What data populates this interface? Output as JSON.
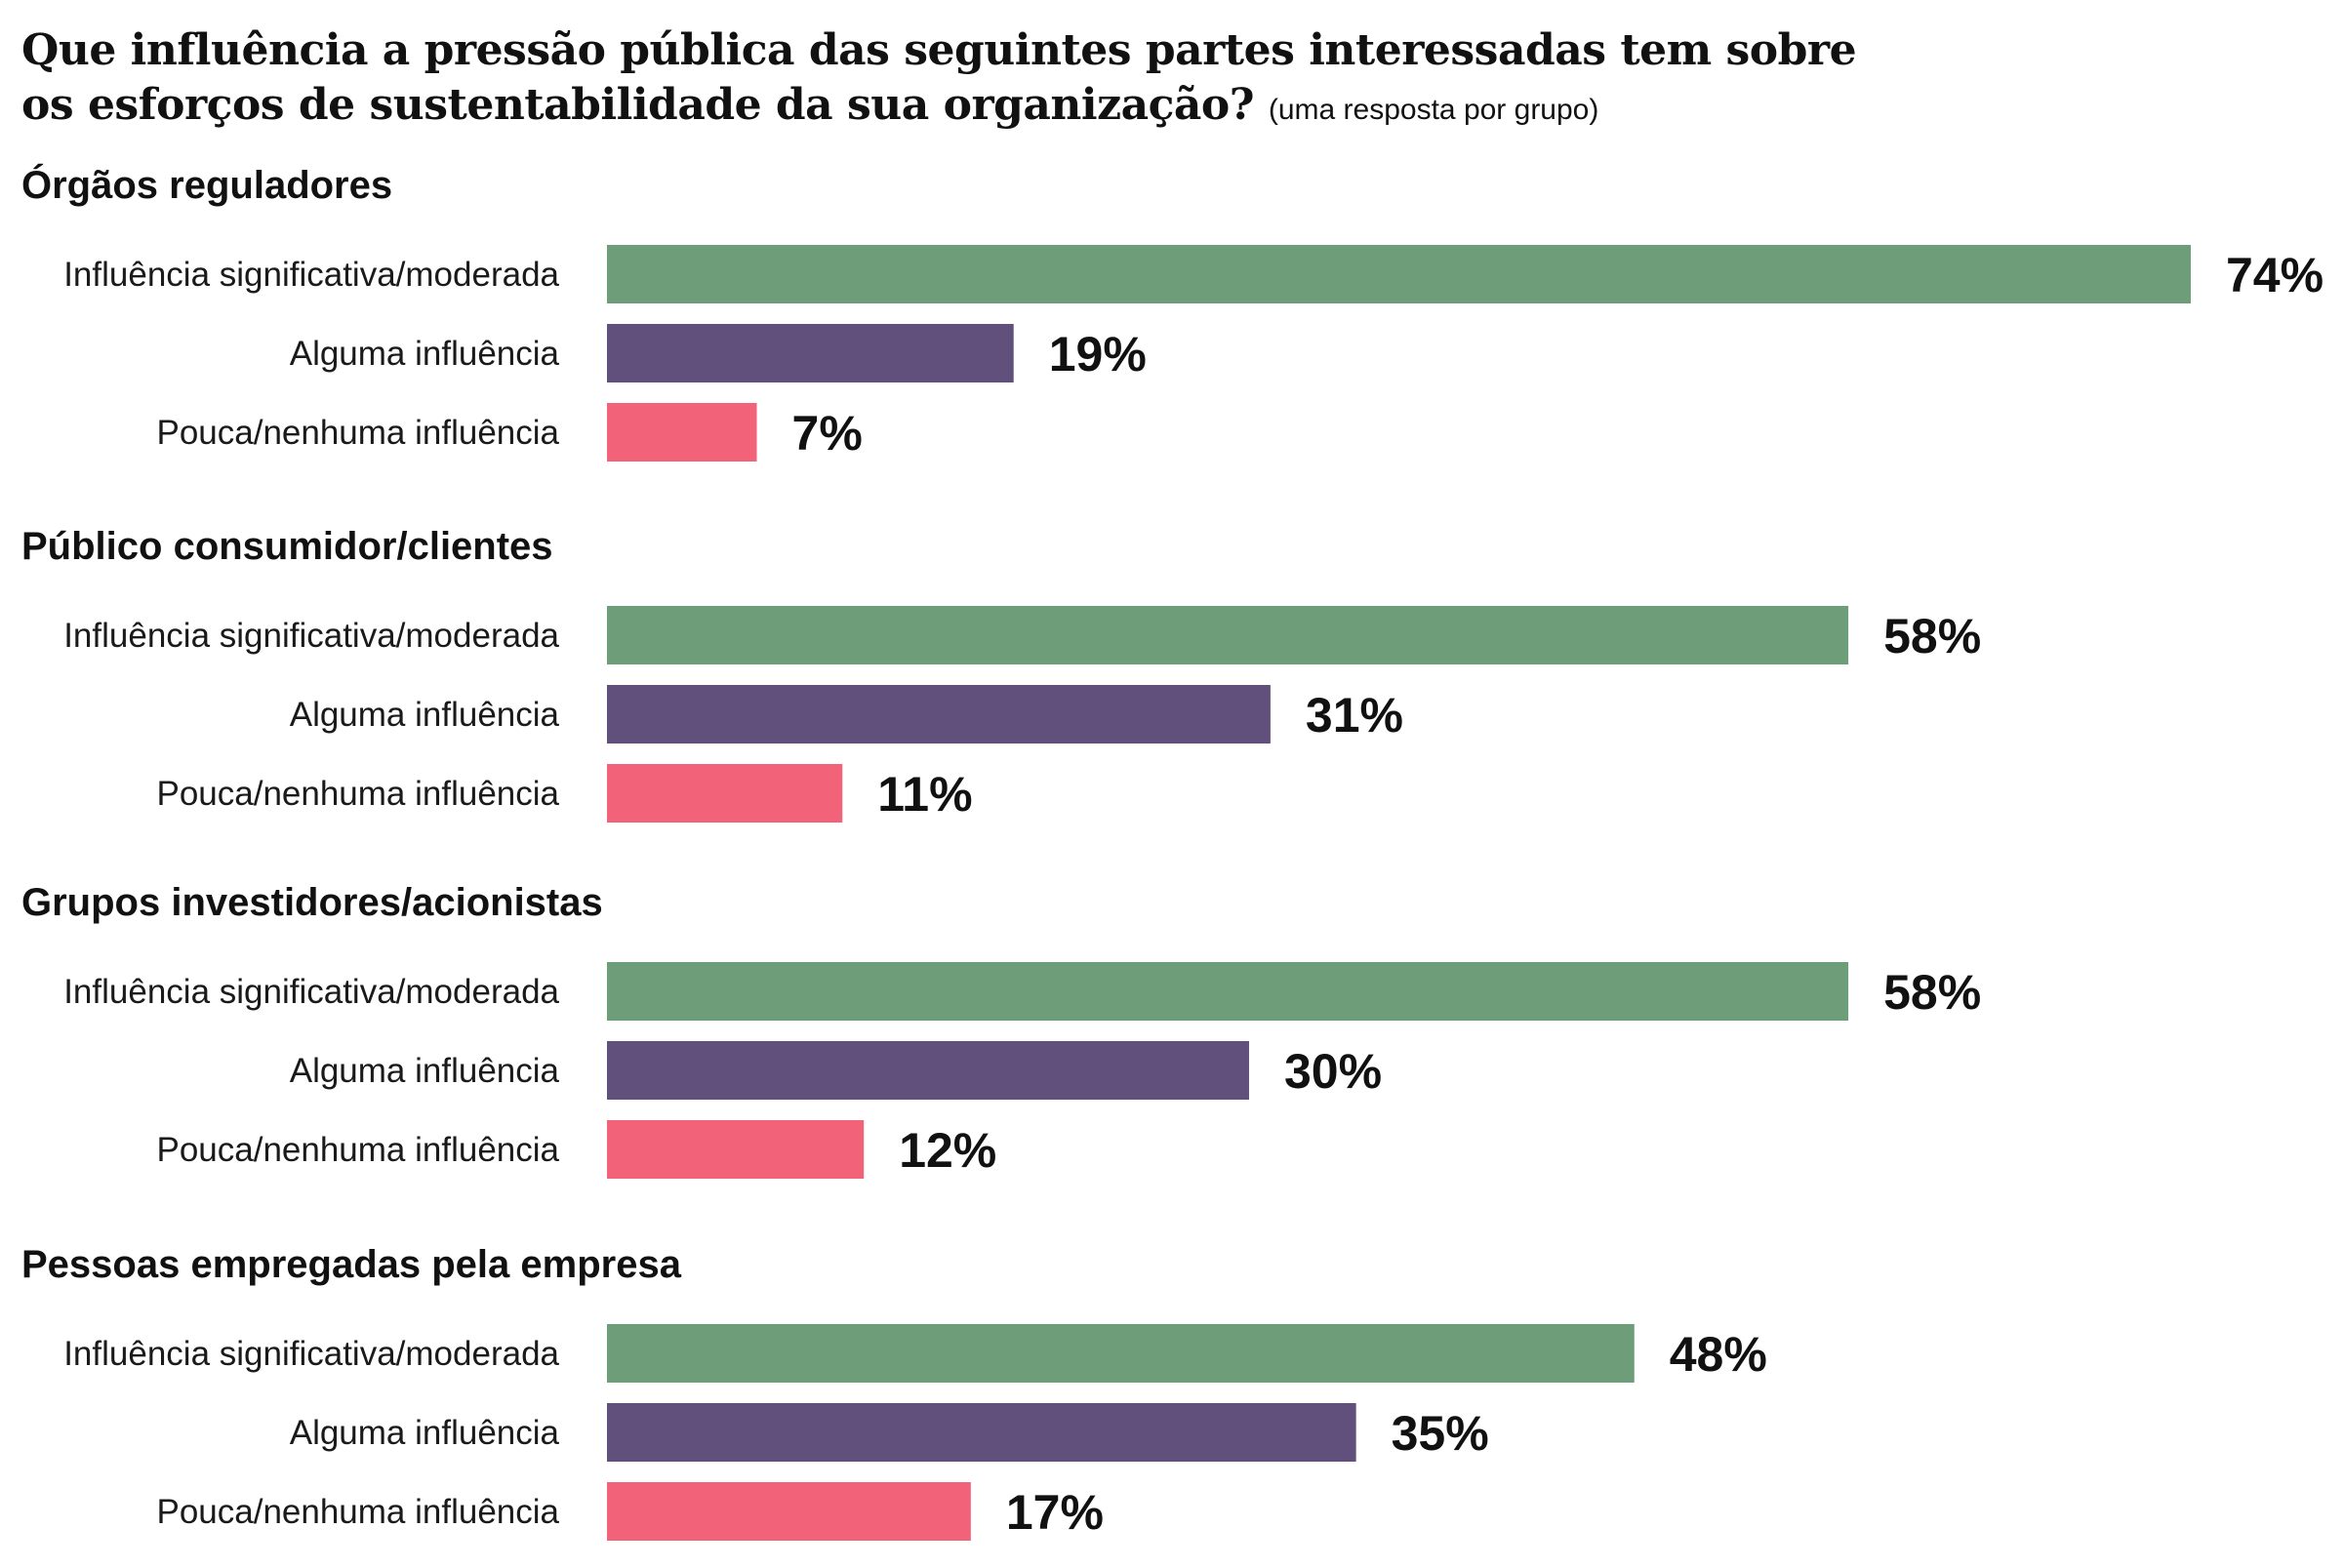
{
  "header": {
    "title_line1": "Que influência a pressão pública das seguintes partes interessadas tem sobre",
    "title_line2": "os esforços de sustentabilidade da sua organização?",
    "note": "(uma resposta por grupo)"
  },
  "colors": {
    "significativa": "#6d9e79",
    "alguma": "#614f7c",
    "pouca": "#f2637a"
  },
  "chart_data": {
    "type": "bar",
    "orientation": "horizontal",
    "title": "Que influência a pressão pública das seguintes partes interessadas tem sobre os esforços de sustentabilidade da sua organização?",
    "subtitle": "(uma resposta por grupo)",
    "unit": "%",
    "xlim": [
      0,
      74
    ],
    "grid": false,
    "legend": "none",
    "categories": [
      "Influência significativa/moderada",
      "Alguma influência",
      "Pouca/nenhuma influência"
    ],
    "groups": [
      {
        "name": "Órgãos reguladores",
        "values": [
          74,
          19,
          7
        ],
        "labels": [
          "74%",
          "19%",
          "7%"
        ]
      },
      {
        "name": "Público consumidor/clientes",
        "values": [
          58,
          31,
          11
        ],
        "labels": [
          "58%",
          "31%",
          "11%"
        ]
      },
      {
        "name": "Grupos investidores/acionistas",
        "values": [
          58,
          30,
          12
        ],
        "labels": [
          "58%",
          "30%",
          "12%"
        ]
      },
      {
        "name": "Pessoas empregadas pela empresa",
        "values": [
          48,
          35,
          17
        ],
        "labels": [
          "48%",
          "35%",
          "17%"
        ]
      }
    ]
  }
}
